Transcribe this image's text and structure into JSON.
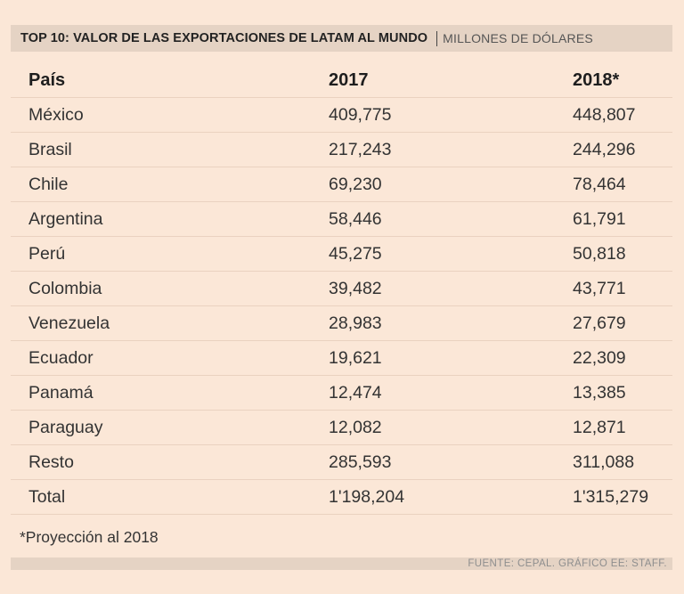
{
  "header": {
    "title": "TOP 10: VALOR DE LAS EXPORTACIONES DE LATAM AL MUNDO",
    "subtitle": "MILLONES DE DÓLARES"
  },
  "chart_data": {
    "type": "table",
    "columns": [
      "País",
      "2017",
      "2018*"
    ],
    "rows": [
      [
        "México",
        "409,775",
        "448,807"
      ],
      [
        "Brasil",
        "217,243",
        "244,296"
      ],
      [
        "Chile",
        "69,230",
        "78,464"
      ],
      [
        "Argentina",
        "58,446",
        "61,791"
      ],
      [
        "Perú",
        "45,275",
        "50,818"
      ],
      [
        "Colombia",
        "39,482",
        "43,771"
      ],
      [
        "Venezuela",
        "28,983",
        "27,679"
      ],
      [
        "Ecuador",
        "19,621",
        "22,309"
      ],
      [
        "Panamá",
        "12,474",
        "13,385"
      ],
      [
        "Paraguay",
        "12,082",
        "12,871"
      ],
      [
        "Resto",
        "285,593",
        "311,088"
      ],
      [
        "Total",
        "1'198,204",
        "1'315,279"
      ]
    ]
  },
  "footnote": "*Proyección al 2018",
  "source": "FUENTE: CEPAL. GRÁFICO EE: STAFF."
}
